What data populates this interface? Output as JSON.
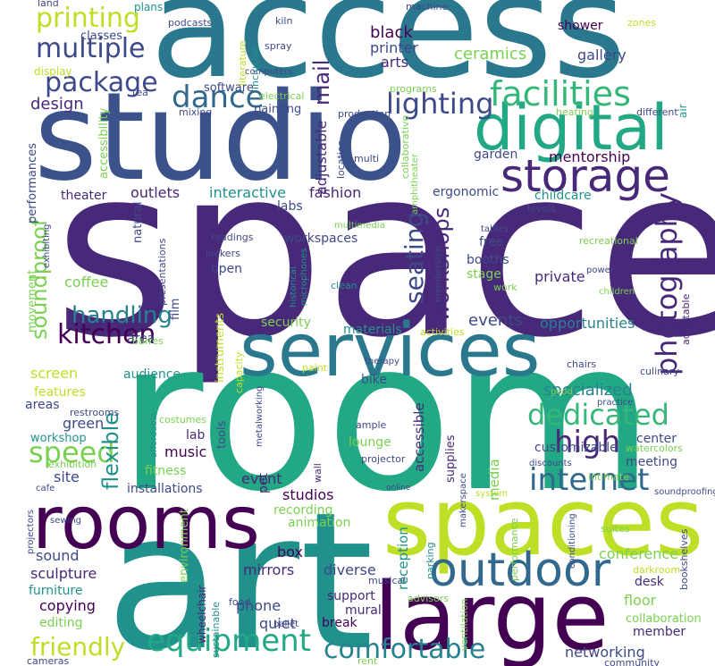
{
  "words": [
    {
      "text": "access",
      "color": "#2a788e"
    },
    {
      "text": "studio",
      "color": "#3b528b"
    },
    {
      "text": "space",
      "color": "#482878"
    },
    {
      "text": "room",
      "color": "#22a884"
    },
    {
      "text": "art",
      "color": "#21918c"
    },
    {
      "text": "spaces",
      "color": "#bddf26"
    },
    {
      "text": "rooms",
      "color": "#440154"
    },
    {
      "text": "large",
      "color": "#440154"
    },
    {
      "text": "services",
      "color": "#2a788e"
    },
    {
      "text": "digital",
      "color": "#22a884"
    },
    {
      "text": "storage",
      "color": "#482878"
    },
    {
      "text": "outdoor",
      "color": "#31688e"
    },
    {
      "text": "facilities",
      "color": "#35b779"
    },
    {
      "text": "printing",
      "color": "#bddf26"
    },
    {
      "text": "multiple",
      "color": "#3e4989"
    },
    {
      "text": "package",
      "color": "#3e4989"
    },
    {
      "text": "dance",
      "color": "#31688e"
    },
    {
      "text": "lighting",
      "color": "#3e4989"
    },
    {
      "text": "kitchen",
      "color": "#440154"
    },
    {
      "text": "handling",
      "color": "#26828e"
    },
    {
      "text": "speed",
      "color": "#7ad151"
    },
    {
      "text": "dedicated",
      "color": "#35b779"
    },
    {
      "text": "high",
      "color": "#482878"
    },
    {
      "text": "internet",
      "color": "#31688e"
    },
    {
      "text": "equipment",
      "color": "#22a884"
    },
    {
      "text": "comfortable",
      "color": "#26828e"
    },
    {
      "text": "friendly",
      "color": "#bddf26"
    },
    {
      "text": "photography",
      "color": "#482878"
    },
    {
      "text": "seating",
      "color": "#3e4989"
    },
    {
      "text": "workshops",
      "color": "#482878"
    },
    {
      "text": "soundproof",
      "color": "#7ad151"
    },
    {
      "text": "flexible",
      "color": "#21918c"
    },
    {
      "text": "mail",
      "color": "#482878"
    },
    {
      "text": "events",
      "color": "#3e4989"
    },
    {
      "text": "specialized",
      "color": "#26828e"
    },
    {
      "text": "ceramics",
      "color": "#7ad151"
    },
    {
      "text": "mentorship",
      "color": "#440154"
    },
    {
      "text": "opportunities",
      "color": "#26828e"
    },
    {
      "text": "black",
      "color": "#440154"
    },
    {
      "text": "printer",
      "color": "#3e4989"
    },
    {
      "text": "arts",
      "color": "#482878"
    },
    {
      "text": "gallery",
      "color": "#3e4989"
    },
    {
      "text": "shower",
      "color": "#440154"
    },
    {
      "text": "design",
      "color": "#482878"
    },
    {
      "text": "software",
      "color": "#3e4989"
    },
    {
      "text": "painting",
      "color": "#3e4989"
    },
    {
      "text": "garden",
      "color": "#3e4989"
    },
    {
      "text": "ergonomic",
      "color": "#3e4989"
    },
    {
      "text": "childcare",
      "color": "#21918c"
    },
    {
      "text": "interactive",
      "color": "#21918c"
    },
    {
      "text": "fashion",
      "color": "#482878"
    },
    {
      "text": "outlets",
      "color": "#482878"
    },
    {
      "text": "theater",
      "color": "#482878"
    },
    {
      "text": "labs",
      "color": "#3e4989"
    },
    {
      "text": "workspaces",
      "color": "#3e4989"
    },
    {
      "text": "free",
      "color": "#3e4989"
    },
    {
      "text": "booths",
      "color": "#3e4989"
    },
    {
      "text": "stage",
      "color": "#7ad151"
    },
    {
      "text": "private",
      "color": "#482878"
    },
    {
      "text": "coffee",
      "color": "#7ad151"
    },
    {
      "text": "open",
      "color": "#3e4989"
    },
    {
      "text": "security",
      "color": "#7ad151"
    },
    {
      "text": "audience",
      "color": "#21918c"
    },
    {
      "text": "screen",
      "color": "#bddf26"
    },
    {
      "text": "features",
      "color": "#bddf26"
    },
    {
      "text": "area",
      "color": "#3e4989"
    },
    {
      "text": "areas",
      "color": "#3e4989"
    },
    {
      "text": "green",
      "color": "#3e4989"
    },
    {
      "text": "workshop",
      "color": "#21918c"
    },
    {
      "text": "lab",
      "color": "#482878"
    },
    {
      "text": "music",
      "color": "#440154"
    },
    {
      "text": "fitness",
      "color": "#7ad151"
    },
    {
      "text": "installations",
      "color": "#3e4989"
    },
    {
      "text": "site",
      "color": "#3e4989"
    },
    {
      "text": "studios",
      "color": "#440154"
    },
    {
      "text": "recording",
      "color": "#7ad151"
    },
    {
      "text": "animation",
      "color": "#7ad151"
    },
    {
      "text": "sound",
      "color": "#3e4989"
    },
    {
      "text": "sculpture",
      "color": "#482878"
    },
    {
      "text": "furniture",
      "color": "#21918c"
    },
    {
      "text": "copying",
      "color": "#440154"
    },
    {
      "text": "editing",
      "color": "#7ad151"
    },
    {
      "text": "mirrors",
      "color": "#482878"
    },
    {
      "text": "phone",
      "color": "#3e4989"
    },
    {
      "text": "quiet",
      "color": "#3e4989"
    },
    {
      "text": "box",
      "color": "#440154"
    },
    {
      "text": "diverse",
      "color": "#3e4989"
    },
    {
      "text": "support",
      "color": "#482878"
    },
    {
      "text": "mural",
      "color": "#482878"
    },
    {
      "text": "break",
      "color": "#440154"
    },
    {
      "text": "networking",
      "color": "#3e4989"
    },
    {
      "text": "member",
      "color": "#482878"
    },
    {
      "text": "desk",
      "color": "#482878"
    },
    {
      "text": "floor",
      "color": "#7ad151"
    },
    {
      "text": "conference",
      "color": "#7ad151"
    },
    {
      "text": "meeting",
      "color": "#3e4989"
    },
    {
      "text": "center",
      "color": "#3e4989"
    },
    {
      "text": "customizable",
      "color": "#3e4989"
    },
    {
      "text": "accessible",
      "color": "#482878"
    },
    {
      "text": "kilns",
      "color": "#7ad151"
    },
    {
      "text": "lounge",
      "color": "#7ad151"
    },
    {
      "text": "pet",
      "color": "#482878"
    },
    {
      "text": "event",
      "color": "#482878"
    },
    {
      "text": "tools",
      "color": "#3e4989"
    },
    {
      "text": "bike",
      "color": "#3e4989"
    },
    {
      "text": "materials",
      "color": "#21918c"
    },
    {
      "text": "land",
      "color": "#3e4989"
    },
    {
      "text": "plans",
      "color": "#21918c"
    },
    {
      "text": "podcasts",
      "color": "#3e4989"
    },
    {
      "text": "kiln",
      "color": "#3e4989"
    },
    {
      "text": "machine",
      "color": "#3e4989"
    },
    {
      "text": "zones",
      "color": "#bddf26"
    },
    {
      "text": "classes",
      "color": "#3e4989"
    },
    {
      "text": "display",
      "color": "#bddf26"
    },
    {
      "text": "spray",
      "color": "#3e4989"
    },
    {
      "text": "tea",
      "color": "#3e4989"
    },
    {
      "text": "computers",
      "color": "#3e4989"
    },
    {
      "text": "electrical",
      "color": "#7ad151"
    },
    {
      "text": "programs",
      "color": "#7ad151"
    },
    {
      "text": "mixing",
      "color": "#3e4989"
    },
    {
      "text": "heating",
      "color": "#7ad151"
    },
    {
      "text": "different",
      "color": "#3e4989"
    },
    {
      "text": "production",
      "color": "#3e4989"
    },
    {
      "text": "air",
      "color": "#21918c"
    },
    {
      "text": "multi",
      "color": "#3e4989"
    },
    {
      "text": "levels",
      "color": "#3e4989"
    },
    {
      "text": "multimedia",
      "color": "#7ad151"
    },
    {
      "text": "tables",
      "color": "#3e4989"
    },
    {
      "text": "readings",
      "color": "#3e4989"
    },
    {
      "text": "lockers",
      "color": "#3e4989"
    },
    {
      "text": "recreational",
      "color": "#7ad151"
    },
    {
      "text": "power",
      "color": "#3e4989"
    },
    {
      "text": "clean",
      "color": "#21918c"
    },
    {
      "text": "work",
      "color": "#7ad151"
    },
    {
      "text": "children",
      "color": "#7ad151"
    },
    {
      "text": "activities",
      "color": "#bddf26"
    },
    {
      "text": "barres",
      "color": "#7ad151"
    },
    {
      "text": "paint",
      "color": "#bddf26"
    },
    {
      "text": "therapy",
      "color": "#3e4989"
    },
    {
      "text": "chairs",
      "color": "#3e4989"
    },
    {
      "text": "culinary",
      "color": "#3e4989"
    },
    {
      "text": "good",
      "color": "#7ad151"
    },
    {
      "text": "practice",
      "color": "#3e4989"
    },
    {
      "text": "ample",
      "color": "#3e4989"
    },
    {
      "text": "costumes",
      "color": "#7ad151"
    },
    {
      "text": "restrooms",
      "color": "#3e4989"
    },
    {
      "text": "exhibition",
      "color": "#7ad151"
    },
    {
      "text": "cafe",
      "color": "#3e4989"
    },
    {
      "text": "projector",
      "color": "#3e4989"
    },
    {
      "text": "watercolors",
      "color": "#7ad151"
    },
    {
      "text": "discounts",
      "color": "#3e4989"
    },
    {
      "text": "intimate",
      "color": "#7ad151"
    },
    {
      "text": "system",
      "color": "#bddf26"
    },
    {
      "text": "soundproofing",
      "color": "#3e4989"
    },
    {
      "text": "online",
      "color": "#3e4989"
    },
    {
      "text": "sewing",
      "color": "#3e4989"
    },
    {
      "text": "musical",
      "color": "#3e4989"
    },
    {
      "text": "suites",
      "color": "#7ad151"
    },
    {
      "text": "advisors",
      "color": "#7ad151"
    },
    {
      "text": "food",
      "color": "#3e4989"
    },
    {
      "text": "ballet",
      "color": "#3e4989"
    },
    {
      "text": "darkroom",
      "color": "#bddf26"
    },
    {
      "text": "collaboration",
      "color": "#7ad151"
    },
    {
      "text": "cameras",
      "color": "#3e4989"
    },
    {
      "text": "rent",
      "color": "#7ad151"
    },
    {
      "text": "community",
      "color": "#3e4989"
    },
    {
      "text": "accessibility",
      "color": "#7ad151"
    },
    {
      "text": "performances",
      "color": "#3e4989"
    },
    {
      "text": "movement",
      "color": "#7ad151"
    },
    {
      "text": "exhibiting",
      "color": "#3e4989"
    },
    {
      "text": "literature",
      "color": "#bddf26"
    },
    {
      "text": "inclusive",
      "color": "#21918c"
    },
    {
      "text": "location",
      "color": "#3e4989"
    },
    {
      "text": "collaborative",
      "color": "#7ad151"
    },
    {
      "text": "amphitheater",
      "color": "#7ad151"
    },
    {
      "text": "membership",
      "color": "#3e4989"
    },
    {
      "text": "historical",
      "color": "#21918c"
    },
    {
      "text": "microphones",
      "color": "#21918c"
    },
    {
      "text": "presentations",
      "color": "#3e4989"
    },
    {
      "text": "film",
      "color": "#3e4989"
    },
    {
      "text": "natural",
      "color": "#3e4989"
    },
    {
      "text": "instruments",
      "color": "#bddf26"
    },
    {
      "text": "capacity",
      "color": "#bddf26"
    },
    {
      "text": "metalworking",
      "color": "#3e4989"
    },
    {
      "text": "wall",
      "color": "#482878"
    },
    {
      "text": "affordable",
      "color": "#21918c"
    },
    {
      "text": "environment",
      "color": "#7ad151"
    },
    {
      "text": "wheelchair",
      "color": "#482878"
    },
    {
      "text": "sustainable",
      "color": "#21918c"
    },
    {
      "text": "reception",
      "color": "#21918c"
    },
    {
      "text": "supplies",
      "color": "#482878"
    },
    {
      "text": "media",
      "color": "#7ad151"
    },
    {
      "text": "parking",
      "color": "#21918c"
    },
    {
      "text": "ventilation",
      "color": "#7ad151"
    },
    {
      "text": "makerspace",
      "color": "#3e4989"
    },
    {
      "text": "performance",
      "color": "#7ad151"
    },
    {
      "text": "conditioning",
      "color": "#3e4989"
    },
    {
      "text": "bookshelves",
      "color": "#3e4989"
    },
    {
      "text": "projectors",
      "color": "#3e4989"
    },
    {
      "text": "adjustable",
      "color": "#482878"
    }
  ]
}
